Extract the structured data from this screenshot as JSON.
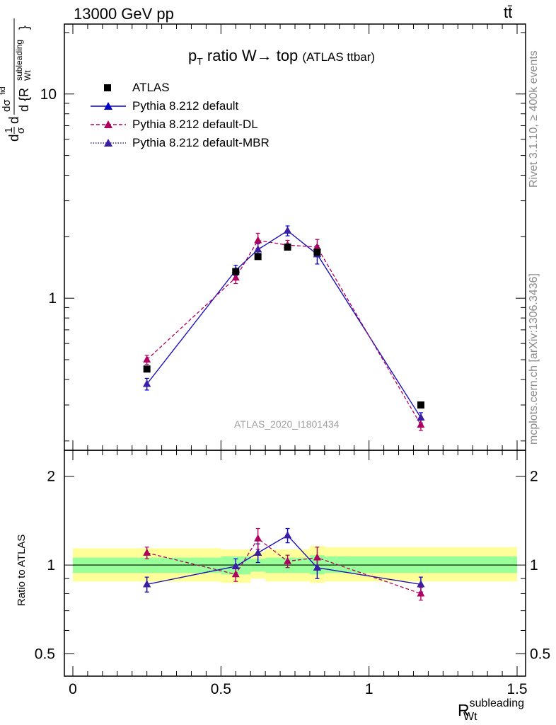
{
  "header": {
    "left": "13000 GeV pp",
    "right": "tt̄"
  },
  "side_labels": {
    "rivet": "Rivet 3.1.10, ≥ 400k events",
    "mcplots": "mcplots.cern.ch [arXiv:1306.3436]"
  },
  "title": {
    "main": "p",
    "main_sub": "T",
    "main_rest": " ratio W→ top",
    "suffix": "(ATLAS ttbar)"
  },
  "watermark": "ATLAS_2020_I1801434",
  "y_label_ratio": "Ratio to ATLAS",
  "x_label": {
    "base": "R",
    "sup": "subleading",
    "sub": "Wt"
  },
  "y_label_main": {
    "d": "d",
    "frac_num": "1",
    "frac_den": "σ",
    "dsigma": "dσ",
    "sup": "fid",
    "denom": "d {R",
    "denom_sup": "subleading",
    "denom_sub": "Wt",
    "close": "}"
  },
  "legend": [
    {
      "label": "ATLAS",
      "color": "#000000",
      "marker": "square",
      "line": "none"
    },
    {
      "label": "Pythia 8.212 default",
      "color": "#0000cc",
      "marker": "triangle",
      "line": "solid"
    },
    {
      "label": "Pythia 8.212 default-DL",
      "color": "#b0005f",
      "marker": "triangle",
      "line": "dashed"
    },
    {
      "label": "Pythia 8.212 default-MBR",
      "color": "#3b1fa0",
      "marker": "triangle",
      "line": "dotted"
    }
  ],
  "chart_data": [
    {
      "type": "scatter",
      "panel": "main",
      "yscale": "log",
      "xlim": [
        -0.03,
        1.53
      ],
      "ylim": [
        0.18,
        22
      ],
      "y_tick_labels": [
        "1",
        "10"
      ],
      "bins": [
        0,
        0.5,
        0.6,
        0.65,
        0.8,
        0.85,
        1.5
      ],
      "x": [
        0.25,
        0.55,
        0.625,
        0.725,
        0.825,
        1.175
      ],
      "series": [
        {
          "name": "ATLAS",
          "values": [
            0.45,
            1.35,
            1.6,
            1.78,
            1.68,
            0.3
          ]
        },
        {
          "name": "Pythia 8.212 default",
          "values": [
            0.38,
            1.37,
            1.73,
            2.14,
            1.64,
            0.26
          ],
          "errors": [
            0.025,
            0.08,
            0.12,
            0.12,
            0.17,
            0.015
          ]
        },
        {
          "name": "Pythia 8.212 default-DL",
          "values": [
            0.5,
            1.26,
            1.92,
            1.82,
            1.78,
            0.24
          ],
          "errors": [
            0.025,
            0.08,
            0.16,
            0.1,
            0.16,
            0.015
          ]
        },
        {
          "name": "Pythia 8.212 default-MBR",
          "values": [
            0.38,
            1.37,
            1.73,
            2.14,
            1.64,
            0.26
          ]
        }
      ]
    },
    {
      "type": "line",
      "panel": "ratio",
      "yscale": "log",
      "ylabel": "Ratio to ATLAS",
      "xlim": [
        -0.03,
        1.53
      ],
      "ylim": [
        0.42,
        2.45
      ],
      "x_tick_labels": [
        "0",
        "0.5",
        "1",
        "1.5"
      ],
      "y_tick_labels": [
        "0.5",
        "1",
        "2"
      ],
      "bands": [
        {
          "x0": 0.0,
          "x1": 0.5,
          "inner": [
            0.94,
            1.06
          ],
          "outer": [
            0.88,
            1.14
          ]
        },
        {
          "x0": 0.5,
          "x1": 0.6,
          "inner": [
            0.93,
            1.07
          ],
          "outer": [
            0.87,
            1.13
          ]
        },
        {
          "x0": 0.6,
          "x1": 0.65,
          "inner": [
            0.95,
            1.05
          ],
          "outer": [
            0.9,
            1.11
          ]
        },
        {
          "x0": 0.65,
          "x1": 0.8,
          "inner": [
            0.94,
            1.06
          ],
          "outer": [
            0.88,
            1.13
          ]
        },
        {
          "x0": 0.8,
          "x1": 0.85,
          "inner": [
            0.93,
            1.08
          ],
          "outer": [
            0.87,
            1.16
          ]
        },
        {
          "x0": 0.85,
          "x1": 1.5,
          "inner": [
            0.94,
            1.07
          ],
          "outer": [
            0.88,
            1.15
          ]
        }
      ],
      "x": [
        0.25,
        0.55,
        0.625,
        0.725,
        0.825,
        1.175
      ],
      "series": [
        {
          "name": "Pythia 8.212 default",
          "values": [
            0.86,
            0.99,
            1.1,
            1.26,
            0.98,
            0.86
          ],
          "errors": [
            0.05,
            0.06,
            0.08,
            0.07,
            0.08,
            0.05
          ]
        },
        {
          "name": "Pythia 8.212 default-DL",
          "values": [
            1.1,
            0.93,
            1.23,
            1.03,
            1.06,
            0.8
          ],
          "errors": [
            0.05,
            0.05,
            0.1,
            0.05,
            0.09,
            0.04
          ]
        },
        {
          "name": "Pythia 8.212 default-MBR",
          "values": [
            0.86,
            0.99,
            1.1,
            1.26,
            0.98,
            0.86
          ]
        }
      ]
    }
  ]
}
